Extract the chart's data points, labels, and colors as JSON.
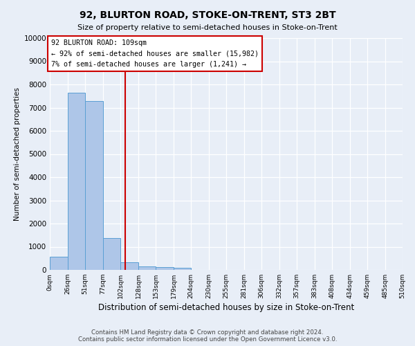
{
  "title": "92, BLURTON ROAD, STOKE-ON-TRENT, ST3 2BT",
  "subtitle": "Size of property relative to semi-detached houses in Stoke-on-Trent",
  "xlabel": "Distribution of semi-detached houses by size in Stoke-on-Trent",
  "ylabel": "Number of semi-detached properties",
  "footer1": "Contains HM Land Registry data © Crown copyright and database right 2024.",
  "footer2": "Contains public sector information licensed under the Open Government Licence v3.0.",
  "bar_edges": [
    0,
    26,
    51,
    77,
    102,
    128,
    153,
    179,
    204,
    230,
    255,
    281,
    306,
    332,
    357,
    383,
    408,
    434,
    459,
    485,
    510
  ],
  "bar_heights": [
    560,
    7650,
    7280,
    1360,
    330,
    160,
    110,
    85,
    0,
    0,
    0,
    0,
    0,
    0,
    0,
    0,
    0,
    0,
    0,
    0
  ],
  "bar_color": "#aec6e8",
  "bar_edge_color": "#5a9fd4",
  "property_size": 109,
  "vline_color": "#cc0000",
  "annotation_text1": "92 BLURTON ROAD: 109sqm",
  "annotation_text2": "← 92% of semi-detached houses are smaller (15,982)",
  "annotation_text3": "7% of semi-detached houses are larger (1,241) →",
  "annotation_box_color": "#ffffff",
  "annotation_box_edge_color": "#cc0000",
  "ylim": [
    0,
    10000
  ],
  "background_color": "#e8eef7",
  "grid_color": "#ffffff",
  "tick_labels": [
    "0sqm",
    "26sqm",
    "51sqm",
    "77sqm",
    "102sqm",
    "128sqm",
    "153sqm",
    "179sqm",
    "204sqm",
    "230sqm",
    "255sqm",
    "281sqm",
    "306sqm",
    "332sqm",
    "357sqm",
    "383sqm",
    "408sqm",
    "434sqm",
    "459sqm",
    "485sqm",
    "510sqm"
  ],
  "yticks": [
    0,
    1000,
    2000,
    3000,
    4000,
    5000,
    6000,
    7000,
    8000,
    9000,
    10000
  ]
}
